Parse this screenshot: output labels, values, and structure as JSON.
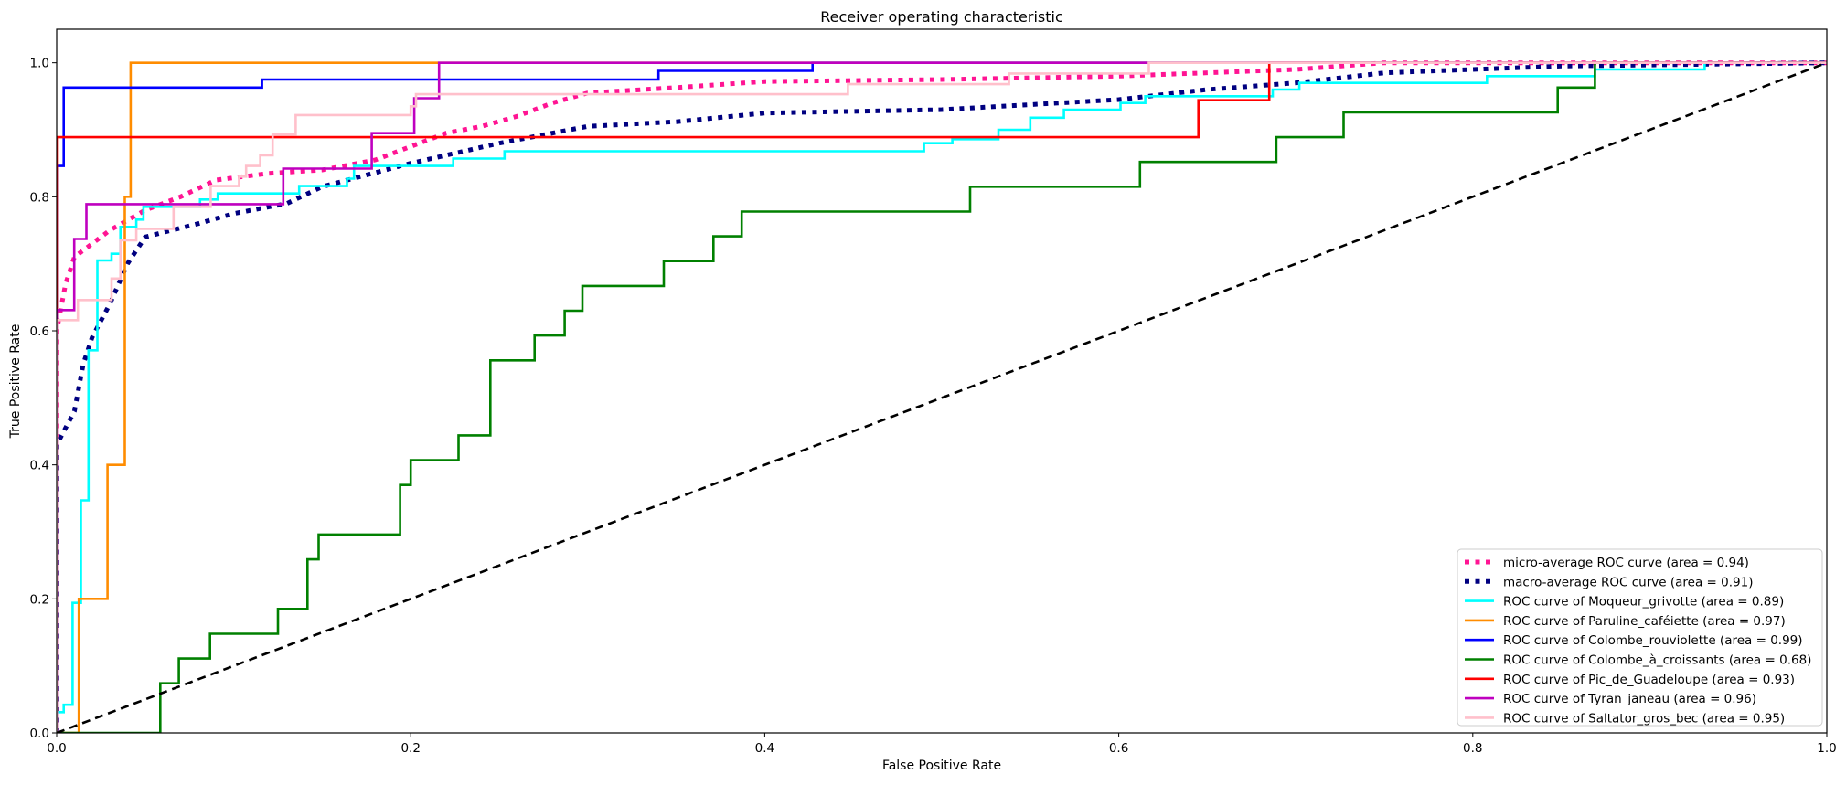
{
  "chart_data": {
    "type": "line",
    "title": "Receiver operating characteristic",
    "xlabel": "False Positive Rate",
    "ylabel": "True Positive Rate",
    "xlim": [
      0,
      1.0
    ],
    "ylim": [
      0,
      1.05
    ],
    "xticks": [
      0.0,
      0.2,
      0.4,
      0.6,
      0.8,
      1.0
    ],
    "xtick_labels": [
      "0.0",
      "0.2",
      "0.4",
      "0.6",
      "0.8",
      "1.0"
    ],
    "yticks": [
      0.0,
      0.2,
      0.4,
      0.6,
      0.8,
      1.0
    ],
    "ytick_labels": [
      "0.0",
      "0.2",
      "0.4",
      "0.6",
      "0.8",
      "1.0"
    ],
    "grid": false,
    "legend_position": "lower-right",
    "series": [
      {
        "name": "micro-average ROC curve (area = 0.94)",
        "color": "#ff1493",
        "style": "dotted",
        "area": 0.94,
        "points": [
          [
            0,
            0
          ],
          [
            0,
            0.6
          ],
          [
            0.005,
            0.67
          ],
          [
            0.01,
            0.71
          ],
          [
            0.02,
            0.73
          ],
          [
            0.03,
            0.75
          ],
          [
            0.05,
            0.78
          ],
          [
            0.07,
            0.8
          ],
          [
            0.09,
            0.825
          ],
          [
            0.12,
            0.835
          ],
          [
            0.15,
            0.84
          ],
          [
            0.18,
            0.855
          ],
          [
            0.2,
            0.875
          ],
          [
            0.22,
            0.895
          ],
          [
            0.24,
            0.905
          ],
          [
            0.26,
            0.92
          ],
          [
            0.28,
            0.94
          ],
          [
            0.3,
            0.955
          ],
          [
            0.35,
            0.963
          ],
          [
            0.4,
            0.972
          ],
          [
            0.5,
            0.975
          ],
          [
            0.6,
            0.98
          ],
          [
            0.7,
            0.99
          ],
          [
            0.75,
            1.0
          ],
          [
            1,
            1
          ]
        ]
      },
      {
        "name": "macro-average ROC curve (area = 0.91)",
        "color": "#000080",
        "style": "dotted",
        "area": 0.91,
        "points": [
          [
            0,
            0
          ],
          [
            0,
            0.43
          ],
          [
            0.01,
            0.48
          ],
          [
            0.015,
            0.55
          ],
          [
            0.02,
            0.59
          ],
          [
            0.03,
            0.64
          ],
          [
            0.04,
            0.7
          ],
          [
            0.05,
            0.74
          ],
          [
            0.08,
            0.76
          ],
          [
            0.1,
            0.775
          ],
          [
            0.13,
            0.79
          ],
          [
            0.15,
            0.815
          ],
          [
            0.2,
            0.85
          ],
          [
            0.25,
            0.88
          ],
          [
            0.3,
            0.905
          ],
          [
            0.35,
            0.912
          ],
          [
            0.4,
            0.925
          ],
          [
            0.5,
            0.93
          ],
          [
            0.6,
            0.945
          ],
          [
            0.65,
            0.96
          ],
          [
            0.7,
            0.97
          ],
          [
            0.75,
            0.985
          ],
          [
            0.85,
            0.995
          ],
          [
            1,
            1
          ]
        ]
      },
      {
        "name": "ROC curve of Moqueur_grivotte (area = 0.89)",
        "color": "#00ffff",
        "style": "solid",
        "area": 0.89,
        "points": [
          [
            0,
            0
          ],
          [
            0,
            0.031
          ],
          [
            0.004,
            0.031
          ],
          [
            0.004,
            0.042
          ],
          [
            0.009,
            0.042
          ],
          [
            0.009,
            0.194
          ],
          [
            0.0137,
            0.194
          ],
          [
            0.0137,
            0.347
          ],
          [
            0.018,
            0.347
          ],
          [
            0.018,
            0.571
          ],
          [
            0.023,
            0.571
          ],
          [
            0.023,
            0.705
          ],
          [
            0.031,
            0.705
          ],
          [
            0.031,
            0.715
          ],
          [
            0.036,
            0.715
          ],
          [
            0.036,
            0.755
          ],
          [
            0.045,
            0.755
          ],
          [
            0.045,
            0.766
          ],
          [
            0.049,
            0.766
          ],
          [
            0.049,
            0.785
          ],
          [
            0.081,
            0.785
          ],
          [
            0.081,
            0.796
          ],
          [
            0.091,
            0.796
          ],
          [
            0.091,
            0.805
          ],
          [
            0.137,
            0.805
          ],
          [
            0.137,
            0.816
          ],
          [
            0.164,
            0.816
          ],
          [
            0.164,
            0.827
          ],
          [
            0.168,
            0.827
          ],
          [
            0.168,
            0.846
          ],
          [
            0.224,
            0.846
          ],
          [
            0.224,
            0.857
          ],
          [
            0.253,
            0.857
          ],
          [
            0.253,
            0.868
          ],
          [
            0.49,
            0.868
          ],
          [
            0.49,
            0.88
          ],
          [
            0.506,
            0.88
          ],
          [
            0.506,
            0.886
          ],
          [
            0.532,
            0.886
          ],
          [
            0.532,
            0.9
          ],
          [
            0.55,
            0.9
          ],
          [
            0.55,
            0.918
          ],
          [
            0.569,
            0.918
          ],
          [
            0.569,
            0.93
          ],
          [
            0.601,
            0.93
          ],
          [
            0.601,
            0.94
          ],
          [
            0.615,
            0.94
          ],
          [
            0.615,
            0.95
          ],
          [
            0.687,
            0.95
          ],
          [
            0.687,
            0.96
          ],
          [
            0.702,
            0.96
          ],
          [
            0.702,
            0.97
          ],
          [
            0.808,
            0.97
          ],
          [
            0.808,
            0.98
          ],
          [
            0.869,
            0.98
          ],
          [
            0.869,
            0.99
          ],
          [
            0.931,
            0.99
          ],
          [
            0.931,
            1
          ],
          [
            1,
            1
          ]
        ]
      },
      {
        "name": "ROC curve of Paruline_caféiette (area = 0.97)",
        "color": "#ff8c00",
        "style": "solid",
        "area": 0.97,
        "points": [
          [
            0,
            0
          ],
          [
            0.0125,
            0
          ],
          [
            0.0125,
            0.2
          ],
          [
            0.0287,
            0.2
          ],
          [
            0.0287,
            0.4
          ],
          [
            0.0385,
            0.4
          ],
          [
            0.0385,
            0.8
          ],
          [
            0.0418,
            0.8
          ],
          [
            0.0418,
            1
          ],
          [
            1,
            1
          ]
        ]
      },
      {
        "name": "ROC curve of Colombe_rouviolette (area = 0.99)",
        "color": "#0000ff",
        "style": "solid",
        "area": 0.99,
        "points": [
          [
            0,
            0
          ],
          [
            0,
            0.846
          ],
          [
            0.004,
            0.846
          ],
          [
            0.004,
            0.963
          ],
          [
            0.116,
            0.963
          ],
          [
            0.116,
            0.975
          ],
          [
            0.34,
            0.975
          ],
          [
            0.34,
            0.988
          ],
          [
            0.427,
            0.988
          ],
          [
            0.427,
            1
          ],
          [
            1,
            1
          ]
        ]
      },
      {
        "name": "ROC curve of Colombe_à_croissants (area = 0.68)",
        "color": "#008000",
        "style": "solid",
        "area": 0.68,
        "points": [
          [
            0,
            0
          ],
          [
            0.0585,
            0
          ],
          [
            0.0585,
            0.074
          ],
          [
            0.069,
            0.074
          ],
          [
            0.069,
            0.111
          ],
          [
            0.0866,
            0.111
          ],
          [
            0.0866,
            0.148
          ],
          [
            0.125,
            0.148
          ],
          [
            0.125,
            0.185
          ],
          [
            0.1417,
            0.185
          ],
          [
            0.1417,
            0.259
          ],
          [
            0.148,
            0.259
          ],
          [
            0.148,
            0.296
          ],
          [
            0.194,
            0.296
          ],
          [
            0.194,
            0.37
          ],
          [
            0.2,
            0.37
          ],
          [
            0.2,
            0.407
          ],
          [
            0.227,
            0.407
          ],
          [
            0.227,
            0.444
          ],
          [
            0.245,
            0.444
          ],
          [
            0.245,
            0.556
          ],
          [
            0.27,
            0.556
          ],
          [
            0.27,
            0.593
          ],
          [
            0.287,
            0.593
          ],
          [
            0.287,
            0.63
          ],
          [
            0.297,
            0.63
          ],
          [
            0.297,
            0.667
          ],
          [
            0.343,
            0.667
          ],
          [
            0.343,
            0.704
          ],
          [
            0.371,
            0.704
          ],
          [
            0.371,
            0.741
          ],
          [
            0.387,
            0.741
          ],
          [
            0.387,
            0.778
          ],
          [
            0.516,
            0.778
          ],
          [
            0.516,
            0.815
          ],
          [
            0.612,
            0.815
          ],
          [
            0.612,
            0.852
          ],
          [
            0.689,
            0.852
          ],
          [
            0.689,
            0.889
          ],
          [
            0.727,
            0.889
          ],
          [
            0.727,
            0.926
          ],
          [
            0.848,
            0.926
          ],
          [
            0.848,
            0.963
          ],
          [
            0.869,
            0.963
          ],
          [
            0.869,
            1
          ],
          [
            1,
            1
          ]
        ]
      },
      {
        "name": "ROC curve of Pic_de_Guadeloupe (area = 0.93)",
        "color": "#ff0000",
        "style": "solid",
        "area": 0.93,
        "points": [
          [
            0,
            0
          ],
          [
            0,
            0.889
          ],
          [
            0.645,
            0.889
          ],
          [
            0.645,
            0.944
          ],
          [
            0.685,
            0.944
          ],
          [
            0.685,
            1
          ],
          [
            1,
            1
          ]
        ]
      },
      {
        "name": "ROC curve of Tyran_janeau (area = 0.96)",
        "color": "#bf00bf",
        "style": "solid",
        "area": 0.96,
        "points": [
          [
            0,
            0
          ],
          [
            0,
            0.631
          ],
          [
            0.0099,
            0.631
          ],
          [
            0.0099,
            0.737
          ],
          [
            0.0168,
            0.737
          ],
          [
            0.0168,
            0.789
          ],
          [
            0.128,
            0.789
          ],
          [
            0.128,
            0.842
          ],
          [
            0.178,
            0.842
          ],
          [
            0.178,
            0.895
          ],
          [
            0.202,
            0.895
          ],
          [
            0.202,
            0.947
          ],
          [
            0.216,
            0.947
          ],
          [
            0.216,
            1
          ],
          [
            1,
            1
          ]
        ]
      },
      {
        "name": "ROC curve of Saltator_gros_bec (area = 0.95)",
        "color": "#ffc0cb",
        "style": "solid",
        "area": 0.95,
        "points": [
          [
            0,
            0
          ],
          [
            0,
            0.616
          ],
          [
            0.012,
            0.616
          ],
          [
            0.012,
            0.646
          ],
          [
            0.031,
            0.646
          ],
          [
            0.031,
            0.678
          ],
          [
            0.036,
            0.678
          ],
          [
            0.036,
            0.735
          ],
          [
            0.045,
            0.735
          ],
          [
            0.045,
            0.752
          ],
          [
            0.066,
            0.752
          ],
          [
            0.066,
            0.785
          ],
          [
            0.087,
            0.785
          ],
          [
            0.087,
            0.816
          ],
          [
            0.103,
            0.816
          ],
          [
            0.103,
            0.83
          ],
          [
            0.107,
            0.83
          ],
          [
            0.107,
            0.846
          ],
          [
            0.115,
            0.846
          ],
          [
            0.115,
            0.862
          ],
          [
            0.122,
            0.862
          ],
          [
            0.122,
            0.893
          ],
          [
            0.135,
            0.893
          ],
          [
            0.135,
            0.922
          ],
          [
            0.2,
            0.922
          ],
          [
            0.2,
            0.935
          ],
          [
            0.203,
            0.935
          ],
          [
            0.203,
            0.953
          ],
          [
            0.447,
            0.953
          ],
          [
            0.447,
            0.968
          ],
          [
            0.538,
            0.968
          ],
          [
            0.538,
            0.984
          ],
          [
            0.617,
            0.984
          ],
          [
            0.617,
            1
          ],
          [
            1,
            1
          ]
        ]
      }
    ],
    "reference_line": {
      "points": [
        [
          0,
          0
        ],
        [
          1,
          1
        ]
      ],
      "color": "#000000",
      "style": "dashed"
    }
  }
}
